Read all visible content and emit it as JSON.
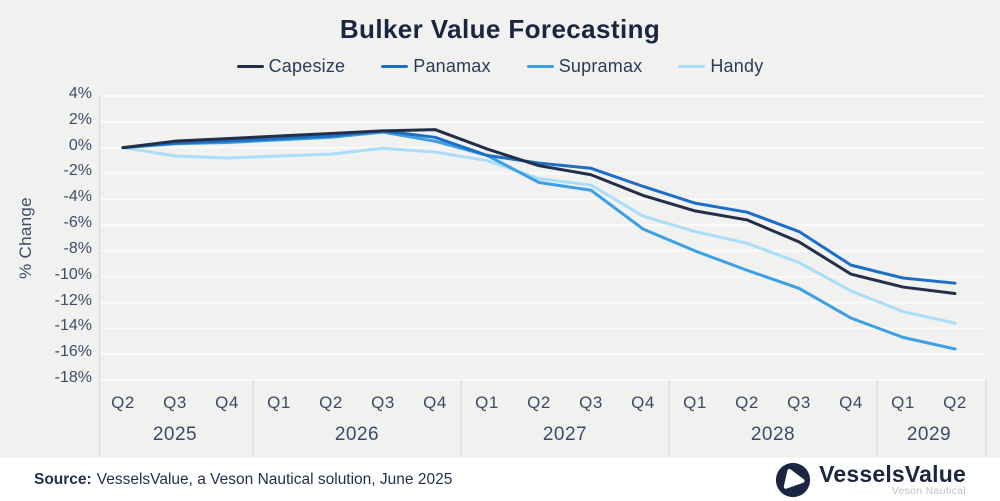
{
  "title": "Bulker Value Forecasting",
  "chart_data": {
    "type": "line",
    "title": "Bulker Value Forecasting",
    "xlabel": "",
    "ylabel": "% Change",
    "ylim": [
      -18,
      4
    ],
    "grid": true,
    "legend_position": "top",
    "y_ticks_percent": [
      4,
      2,
      0,
      -2,
      -4,
      -6,
      -8,
      -10,
      -12,
      -14,
      -16,
      -18
    ],
    "x_groups": [
      {
        "year": "2025",
        "quarters": [
          "Q2",
          "Q3",
          "Q4"
        ]
      },
      {
        "year": "2026",
        "quarters": [
          "Q1",
          "Q2",
          "Q3",
          "Q4"
        ]
      },
      {
        "year": "2027",
        "quarters": [
          "Q1",
          "Q2",
          "Q3",
          "Q4"
        ]
      },
      {
        "year": "2028",
        "quarters": [
          "Q1",
          "Q2",
          "Q3",
          "Q4"
        ]
      },
      {
        "year": "2029",
        "quarters": [
          "Q1",
          "Q2"
        ]
      }
    ],
    "series": [
      {
        "name": "Capesize",
        "color": "#232e48",
        "values": [
          0,
          0.5,
          0.7,
          0.9,
          1.1,
          1.3,
          1.4,
          -0.1,
          -1.4,
          -2.1,
          -3.7,
          -4.9,
          -5.6,
          -7.3,
          -9.8,
          -10.8,
          -11.3
        ]
      },
      {
        "name": "Panamax",
        "color": "#1d6fc5",
        "values": [
          0,
          0.35,
          0.5,
          0.7,
          0.9,
          1.3,
          0.8,
          -0.6,
          -1.2,
          -1.6,
          -3.0,
          -4.3,
          -5.0,
          -6.5,
          -9.1,
          -10.1,
          -10.5
        ]
      },
      {
        "name": "Supramax",
        "color": "#3da0e3",
        "values": [
          0,
          0.3,
          0.4,
          0.6,
          0.8,
          1.2,
          0.5,
          -0.6,
          -2.7,
          -3.3,
          -6.3,
          -8.0,
          -9.5,
          -10.9,
          -13.2,
          -14.7,
          -15.6
        ]
      },
      {
        "name": "Handy",
        "color": "#aaddf8",
        "values": [
          0,
          -0.65,
          -0.8,
          -0.65,
          -0.5,
          -0.05,
          -0.35,
          -1.0,
          -2.4,
          -2.9,
          -5.3,
          -6.5,
          -7.4,
          -8.9,
          -11.1,
          -12.7,
          -13.6
        ]
      }
    ]
  },
  "colors": {
    "background": "#f1f1ef",
    "gridline": "#fafaf8",
    "axis_line": "#dcdcd8",
    "title_text": "#1a2540",
    "tick_text": "#3e4b68",
    "footer_background": "#ffffff",
    "logo_navy": "#1b2740"
  },
  "footer": {
    "source_label": "Source:",
    "source_text": "VesselsValue, a Veson Nautical solution, June 2025",
    "logo_text": "VesselsValue",
    "logo_subtext": "Veson Nautical"
  }
}
